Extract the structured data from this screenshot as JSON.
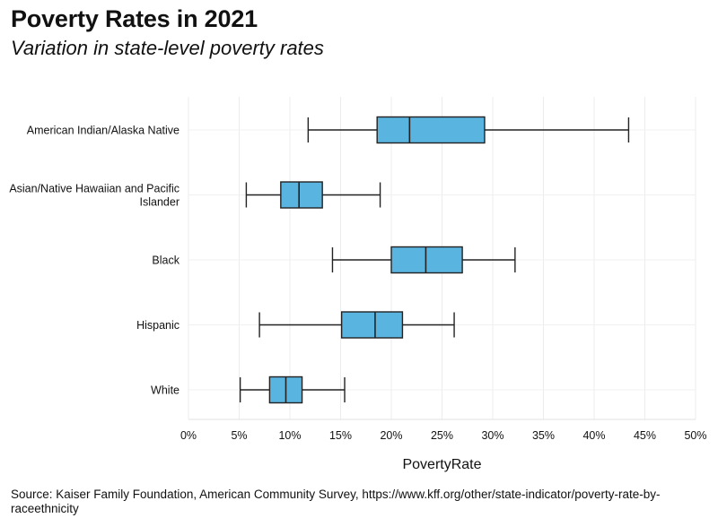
{
  "header": {
    "title": "Poverty Rates in 2021",
    "subtitle": "Variation in state-level poverty rates"
  },
  "footer": {
    "source": "Source: Kaiser Family Foundation, American Community Survey, https://www.kff.org/other/state-indicator/poverty-rate-by-raceethnicity"
  },
  "chart_data": {
    "type": "boxplot",
    "title": "Poverty Rates in 2021",
    "subtitle": "Variation in state-level poverty rates",
    "xlabel": "PovertyRate",
    "ylabel": "",
    "xlim": [
      0,
      0.5
    ],
    "xticks": [
      0,
      0.05,
      0.1,
      0.15,
      0.2,
      0.25,
      0.3,
      0.35,
      0.4,
      0.45,
      0.5
    ],
    "xtick_labels": [
      "0%",
      "5%",
      "10%",
      "15%",
      "20%",
      "25%",
      "30%",
      "35%",
      "40%",
      "45%",
      "50%"
    ],
    "grid": true,
    "box_color": "#5ab4e0",
    "categories": [
      {
        "label": "American Indian/Alaska Native",
        "min": 0.118,
        "q1": 0.186,
        "median": 0.218,
        "q3": 0.292,
        "max": 0.434
      },
      {
        "label": "Asian/Native Hawaiian and Pacific Islander",
        "min": 0.057,
        "q1": 0.091,
        "median": 0.109,
        "q3": 0.132,
        "max": 0.189
      },
      {
        "label": "Black",
        "min": 0.142,
        "q1": 0.2,
        "median": 0.234,
        "q3": 0.27,
        "max": 0.322
      },
      {
        "label": "Hispanic",
        "min": 0.07,
        "q1": 0.151,
        "median": 0.184,
        "q3": 0.211,
        "max": 0.262
      },
      {
        "label": "White",
        "min": 0.051,
        "q1": 0.08,
        "median": 0.096,
        "q3": 0.112,
        "max": 0.154
      }
    ]
  }
}
